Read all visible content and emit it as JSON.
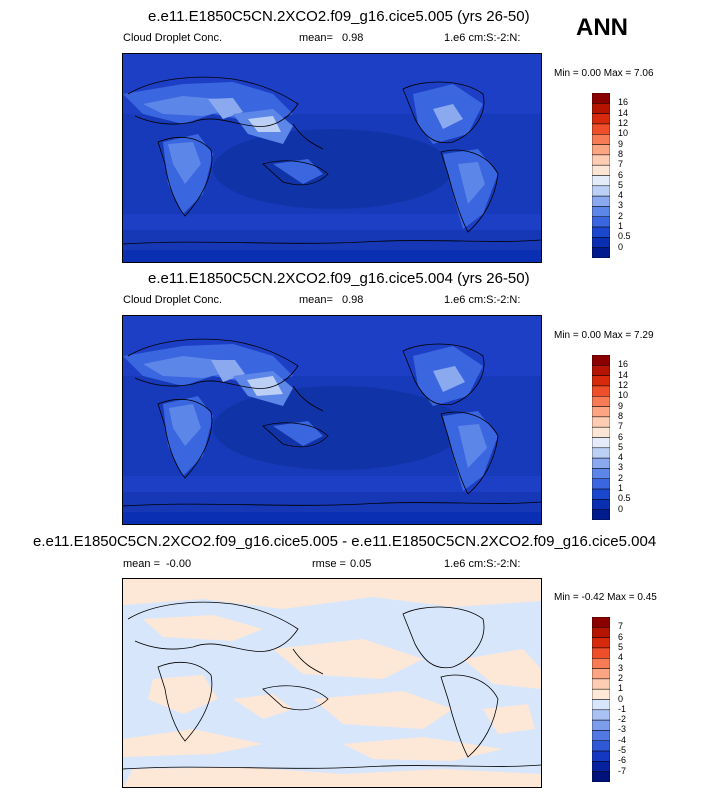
{
  "season": "ANN",
  "panels": [
    {
      "title": "e.e11.E1850C5CN.2XCO2.f09_g16.cice5.005 (yrs 26-50)",
      "variable": "Cloud Droplet Conc.",
      "mean_label": "mean=",
      "mean_value": "0.98",
      "units": "1.e6 cm:S:-2:N:",
      "min_max": "Min =  0.00 Max =  7.06",
      "min": 0.0,
      "max": 7.06,
      "levels": [
        "16",
        "14",
        "12",
        "10",
        "9",
        "8",
        "7",
        "6",
        "5",
        "4",
        "3",
        "2",
        "1",
        "0.5",
        "0"
      ],
      "colors": [
        "#8a0000",
        "#b51500",
        "#d72a0c",
        "#ef4e2a",
        "#f77b55",
        "#fba582",
        "#fccdb2",
        "#fbe6d6",
        "#e4ecfa",
        "#bccff5",
        "#8aa9ef",
        "#5d86e9",
        "#3a66df",
        "#1b47cf",
        "#0b2fb3",
        "#001b8c"
      ]
    },
    {
      "title": "e.e11.E1850C5CN.2XCO2.f09_g16.cice5.004 (yrs 26-50)",
      "variable": "Cloud Droplet Conc.",
      "mean_label": "mean=",
      "mean_value": "0.98",
      "units": "1.e6 cm:S:-2:N:",
      "min_max": "Min =  0.00 Max =  7.29",
      "min": 0.0,
      "max": 7.29,
      "levels": [
        "16",
        "14",
        "12",
        "10",
        "9",
        "8",
        "7",
        "6",
        "5",
        "4",
        "3",
        "2",
        "1",
        "0.5",
        "0"
      ],
      "colors": [
        "#8a0000",
        "#b51500",
        "#d72a0c",
        "#ef4e2a",
        "#f77b55",
        "#fba582",
        "#fccdb2",
        "#fbe6d6",
        "#e4ecfa",
        "#bccff5",
        "#8aa9ef",
        "#5d86e9",
        "#3a66df",
        "#1b47cf",
        "#0b2fb3",
        "#001b8c"
      ]
    },
    {
      "title": "e.e11.E1850C5CN.2XCO2.f09_g16.cice5.005 - e.e11.E1850C5CN.2XCO2.f09_g16.cice5.004",
      "mean_label": "mean =",
      "mean_value": "-0.00",
      "rmse_label": "rmse =",
      "rmse_value": "0.05",
      "units": "1.e6 cm:S:-2:N:",
      "min_max": "Min = -0.42 Max =  0.45",
      "min": -0.42,
      "max": 0.45,
      "levels": [
        "7",
        "6",
        "5",
        "4",
        "3",
        "2",
        "1",
        "0",
        "-1",
        "-2",
        "-3",
        "-4",
        "-5",
        "-6",
        "-7"
      ],
      "colors": [
        "#8a0000",
        "#b51500",
        "#d72a0c",
        "#ef4e2a",
        "#f77b55",
        "#fba582",
        "#fccdb2",
        "#fde7d7",
        "#d8e6fb",
        "#a9c2f3",
        "#7b9deb",
        "#5279e3",
        "#2f58d6",
        "#1438c2",
        "#06229f",
        "#00117a"
      ]
    }
  ]
}
